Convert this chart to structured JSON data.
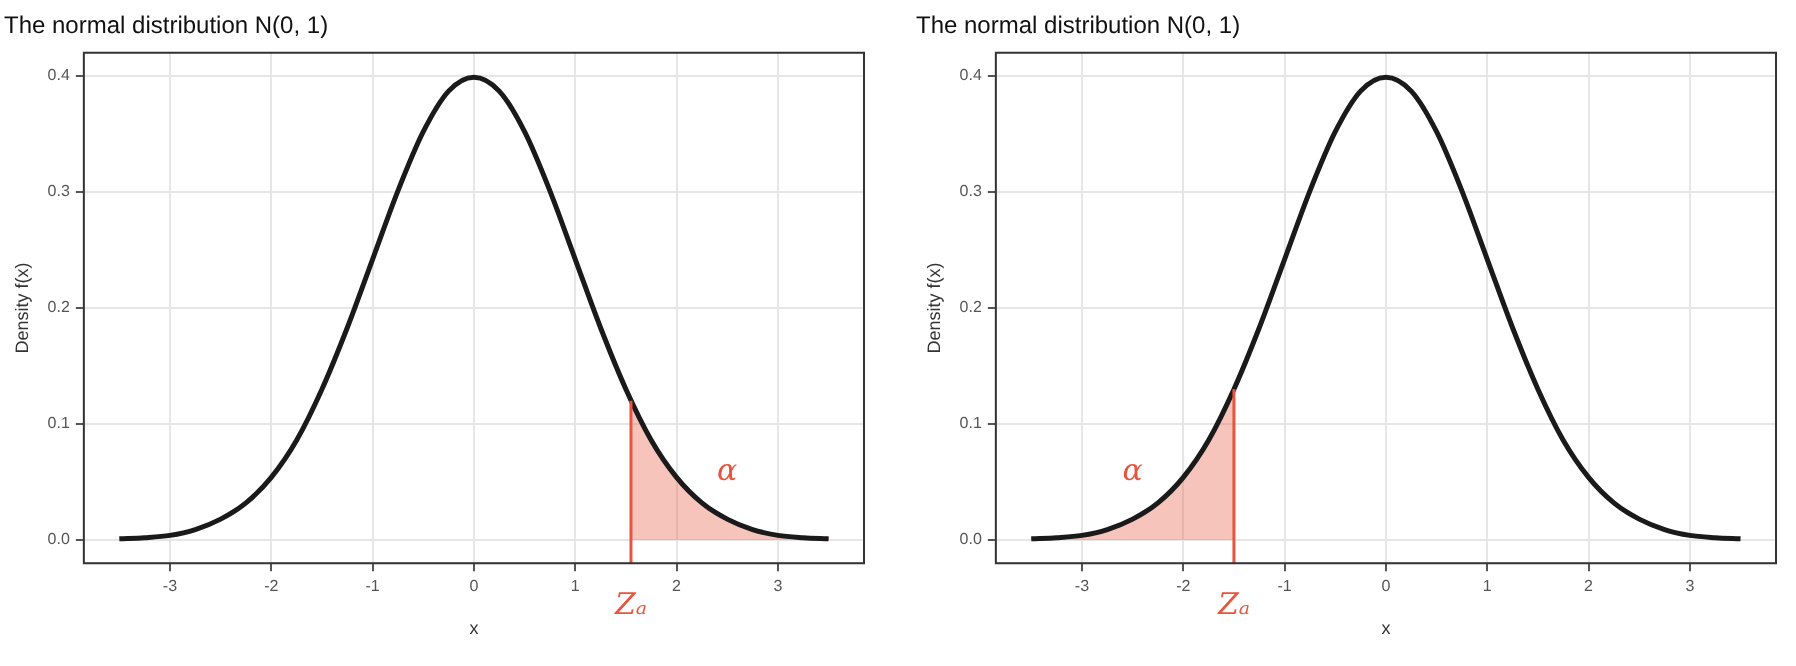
{
  "chart_data": [
    {
      "type": "line",
      "title": "The normal distribution N(0, 1)",
      "xlabel": "x",
      "ylabel": "Density f(x)",
      "xlim": [
        -3.85,
        3.85
      ],
      "ylim": [
        -0.02,
        0.42
      ],
      "xticks": [
        -3,
        -2,
        -1,
        0,
        1,
        2,
        3
      ],
      "yticks": [
        {
          "value": 0,
          "label": "0.0"
        },
        0.1,
        0.2,
        0.3,
        0.4
      ],
      "grid": true,
      "legend": false,
      "series": [
        {
          "color": "#1a1a1a",
          "x": [
            -3.5,
            -3.25,
            -3,
            -2.75,
            -2.5,
            -2.25,
            -2,
            -1.75,
            -1.5,
            -1.25,
            -1,
            -0.75,
            -0.5,
            -0.25,
            0,
            0.25,
            0.5,
            0.75,
            1,
            1.25,
            1.5,
            1.75,
            2,
            2.25,
            2.5,
            2.75,
            3,
            3.25,
            3.5
          ],
          "values": [
            0.001,
            0.002,
            0.004,
            0.009,
            0.018,
            0.032,
            0.054,
            0.086,
            0.13,
            0.183,
            0.242,
            0.301,
            0.352,
            0.387,
            0.399,
            0.387,
            0.352,
            0.301,
            0.242,
            0.183,
            0.13,
            0.086,
            0.054,
            0.032,
            0.018,
            0.009,
            0.004,
            0.002,
            0.001
          ]
        },
        {
          "type": "area",
          "color": "#e8553f",
          "x": [
            1.55,
            1.75,
            2,
            2.25,
            2.5,
            2.75,
            3,
            3.25,
            3.5
          ],
          "values": [
            0.12,
            0.086,
            0.054,
            0.032,
            0.018,
            0.009,
            0.004,
            0.002,
            0.001
          ]
        }
      ],
      "annotations": [
        {
          "text": "Zₐ",
          "x": 1.55,
          "y": 0.12
        },
        "α"
      ]
    },
    {
      "type": "line",
      "title": "The normal distribution N(0, 1)",
      "xlabel": "x",
      "ylabel": "Density f(x)",
      "xlim": [
        -3.85,
        3.85
      ],
      "ylim": [
        -0.02,
        0.42
      ],
      "xticks": [
        -3,
        -2,
        -1,
        0,
        1,
        2,
        3
      ],
      "yticks": [
        {
          "value": 0,
          "label": "0.0"
        },
        0.1,
        0.2,
        0.3,
        0.4
      ],
      "grid": true,
      "legend": false,
      "series": [
        {
          "color": "#1a1a1a",
          "x": [
            -3.5,
            -3.25,
            -3,
            -2.75,
            -2.5,
            -2.25,
            -2,
            -1.75,
            -1.5,
            -1.25,
            -1,
            -0.75,
            -0.5,
            -0.25,
            0,
            0.25,
            0.5,
            0.75,
            1,
            1.25,
            1.5,
            1.75,
            2,
            2.25,
            2.5,
            2.75,
            3,
            3.25,
            3.5
          ],
          "values": [
            0.001,
            0.002,
            0.004,
            0.009,
            0.018,
            0.032,
            0.054,
            0.086,
            0.13,
            0.183,
            0.242,
            0.301,
            0.352,
            0.387,
            0.399,
            0.387,
            0.352,
            0.301,
            0.242,
            0.183,
            0.13,
            0.086,
            0.054,
            0.032,
            0.018,
            0.009,
            0.004,
            0.002,
            0.001
          ]
        },
        {
          "type": "area",
          "color": "#e8553f",
          "x": [
            -3.5,
            -3.25,
            -3,
            -2.75,
            -2.5,
            -2.25,
            -2,
            -1.75,
            -1.5
          ],
          "values": [
            0.001,
            0.002,
            0.004,
            0.009,
            0.018,
            0.032,
            0.054,
            0.086,
            0.13
          ]
        }
      ],
      "annotations": [
        {
          "text": "Zₐ",
          "x": -1.5,
          "y": 0.13
        },
        "α"
      ]
    }
  ]
}
